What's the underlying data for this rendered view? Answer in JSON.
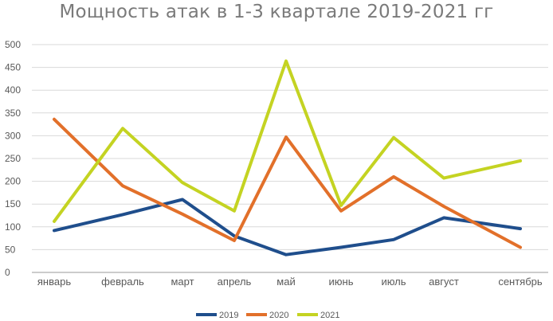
{
  "chart_data": {
    "type": "line",
    "title": "Мощность атак в 1-3 квартале 2019-2021 гг",
    "xlabel": "",
    "ylabel": "",
    "categories": [
      "январь",
      "февраль",
      "март",
      "апрель",
      "май",
      "июнь",
      "июль",
      "август",
      "сентябрь"
    ],
    "y_ticks": [
      "0",
      "50",
      "100",
      "150",
      "200",
      "250",
      "300",
      "350",
      "400",
      "450",
      "500"
    ],
    "ylim": [
      0,
      500
    ],
    "grid": true,
    "legend_position": "bottom",
    "series": [
      {
        "name": "2019",
        "color": "#1f4e8c",
        "values": [
          92,
          127,
          160,
          80,
          39,
          55,
          72,
          120,
          96
        ]
      },
      {
        "name": "2020",
        "color": "#e2702a",
        "values": [
          336,
          190,
          128,
          70,
          297,
          135,
          210,
          145,
          55
        ]
      },
      {
        "name": "2021",
        "color": "#c4d322",
        "values": [
          112,
          316,
          197,
          135,
          464,
          147,
          296,
          207,
          245
        ]
      }
    ]
  }
}
